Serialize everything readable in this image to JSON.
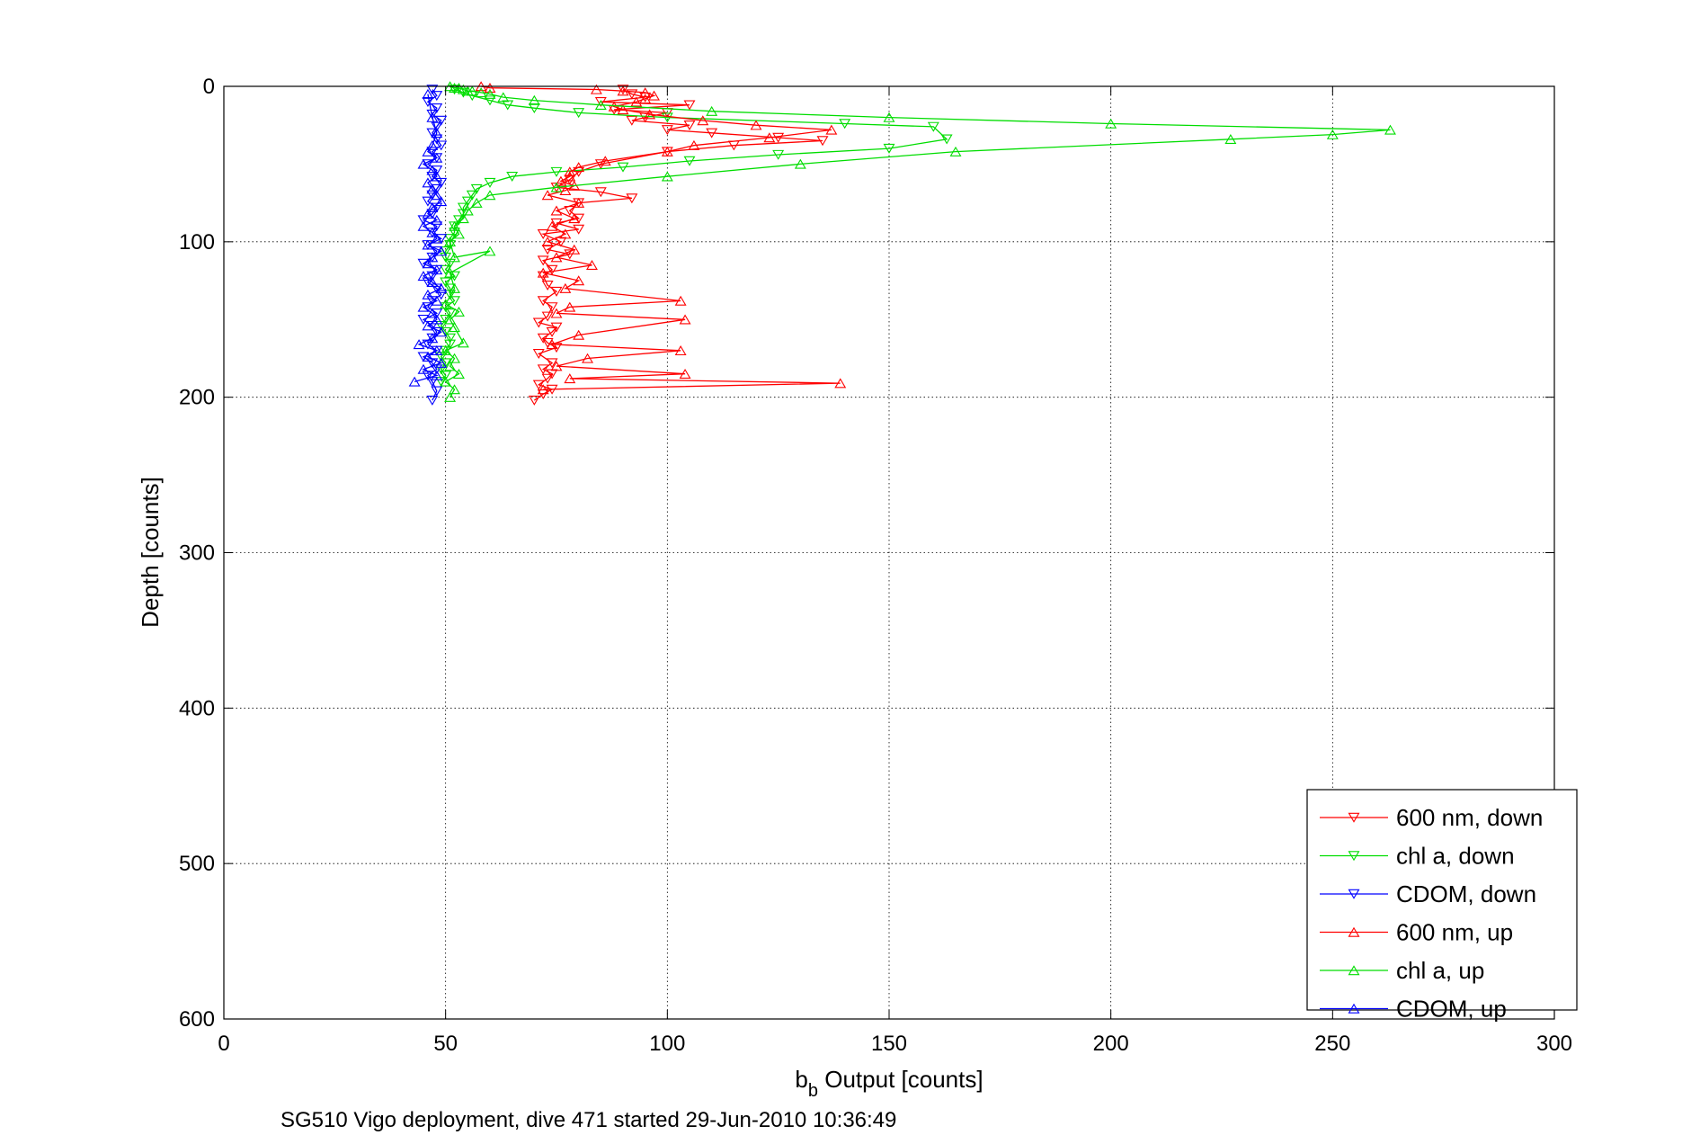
{
  "chart_data": {
    "type": "line",
    "xlabel": {
      "main": "b",
      "sub": "b",
      "rest": " Output [counts]"
    },
    "ylabel": "Depth [counts]",
    "caption": "SG510 Vigo deployment, dive 471 started 29-Jun-2010 10:36:49",
    "xlim": [
      0,
      300
    ],
    "ylim": [
      0,
      600
    ],
    "y_reversed": true,
    "x_ticks": [
      "0",
      "50",
      "100",
      "150",
      "200",
      "250",
      "300"
    ],
    "y_ticks": [
      "0",
      "100",
      "200",
      "300",
      "400",
      "500",
      "600"
    ],
    "grid": true,
    "legend_position": "bottom-right",
    "series": [
      {
        "name": "600 nm, down",
        "color": "#ff0000",
        "marker": "triangle-down",
        "x": [
          90,
          92,
          95,
          85,
          105,
          88,
          100,
          95,
          92,
          105,
          100,
          110,
          125,
          135,
          115,
          100,
          85,
          80,
          78,
          75,
          85,
          92,
          80,
          78,
          80,
          75,
          80,
          72,
          76,
          73,
          78,
          72,
          74,
          72,
          73,
          75,
          72,
          74,
          73,
          71,
          75,
          74,
          72,
          73,
          75,
          71,
          74,
          72,
          74,
          73,
          71,
          74,
          72,
          70
        ],
        "y": [
          2,
          5,
          7,
          10,
          12,
          15,
          17,
          20,
          22,
          25,
          28,
          30,
          33,
          35,
          38,
          42,
          50,
          55,
          60,
          65,
          68,
          72,
          75,
          80,
          85,
          88,
          92,
          95,
          100,
          105,
          108,
          112,
          118,
          122,
          128,
          132,
          138,
          142,
          148,
          152,
          155,
          158,
          162,
          165,
          168,
          172,
          178,
          182,
          185,
          188,
          192,
          195,
          198,
          202
        ]
      },
      {
        "name": "chl a, down",
        "color": "#00dd00",
        "marker": "triangle-down",
        "x": [
          52,
          54,
          56,
          60,
          64,
          70,
          80,
          100,
          140,
          160,
          163,
          150,
          125,
          105,
          90,
          75,
          65,
          60,
          57,
          56,
          55,
          54,
          54,
          53,
          52,
          52,
          51,
          51,
          50,
          50,
          51,
          50,
          52,
          50,
          51,
          51,
          52,
          50,
          51,
          50,
          49,
          50,
          51,
          51,
          50,
          49,
          50,
          49,
          50,
          49
        ],
        "y": [
          2,
          4,
          6,
          9,
          12,
          14,
          17,
          20,
          24,
          26,
          34,
          40,
          44,
          48,
          52,
          55,
          58,
          62,
          66,
          70,
          74,
          78,
          82,
          86,
          90,
          94,
          98,
          102,
          106,
          110,
          114,
          118,
          122,
          126,
          130,
          134,
          138,
          142,
          146,
          150,
          154,
          158,
          162,
          166,
          170,
          174,
          178,
          182,
          186,
          190
        ]
      },
      {
        "name": "CDOM, down",
        "color": "#0000ff",
        "marker": "triangle-down",
        "x": [
          47,
          48,
          46,
          48,
          47,
          49,
          48,
          47,
          48,
          49,
          47,
          48,
          46,
          48,
          47,
          49,
          48,
          47,
          46,
          48,
          47,
          45,
          48,
          47,
          49,
          46,
          48,
          47,
          45,
          48,
          47,
          46,
          48,
          49,
          47,
          46,
          48,
          45,
          47,
          48,
          47,
          46,
          48,
          45,
          47,
          48,
          46,
          47,
          48,
          47
        ],
        "y": [
          2,
          6,
          10,
          14,
          18,
          22,
          26,
          30,
          34,
          38,
          42,
          46,
          50,
          54,
          58,
          62,
          66,
          70,
          74,
          78,
          82,
          86,
          90,
          94,
          98,
          102,
          106,
          110,
          114,
          118,
          122,
          126,
          130,
          134,
          138,
          142,
          146,
          150,
          154,
          158,
          162,
          166,
          170,
          174,
          178,
          182,
          186,
          190,
          196,
          202
        ]
      },
      {
        "name": "600 nm, up",
        "color": "#ff0000",
        "marker": "triangle-up",
        "x": [
          72,
          139,
          78,
          104,
          75,
          82,
          103,
          74,
          80,
          104,
          75,
          78,
          103,
          77,
          80,
          72,
          83,
          75,
          79,
          73,
          77,
          74,
          79,
          75,
          80,
          73,
          77,
          79,
          76,
          78,
          78,
          80,
          86,
          100,
          106,
          123,
          137,
          120,
          108,
          96,
          90,
          88,
          93,
          95,
          97,
          95,
          90,
          84,
          60,
          58
        ],
        "y": [
          195,
          191,
          188,
          185,
          180,
          175,
          170,
          166,
          160,
          150,
          146,
          142,
          138,
          130,
          125,
          120,
          115,
          110,
          105,
          100,
          95,
          90,
          85,
          80,
          75,
          70,
          67,
          64,
          61,
          58,
          55,
          52,
          48,
          42,
          38,
          33,
          28,
          25,
          22,
          18,
          15,
          13,
          10,
          8,
          6,
          4,
          3,
          2,
          1,
          0
        ]
      },
      {
        "name": "chl a, up",
        "color": "#00dd00",
        "marker": "triangle-up",
        "x": [
          51,
          52,
          50,
          53,
          51,
          52,
          50,
          54,
          52,
          51,
          53,
          50,
          52,
          51,
          60,
          52,
          51,
          53,
          52,
          54,
          55,
          57,
          60,
          75,
          100,
          130,
          165,
          227,
          250,
          263,
          200,
          150,
          110,
          85,
          70,
          63,
          60,
          58,
          56,
          55,
          54,
          53,
          52,
          51
        ],
        "y": [
          200,
          195,
          190,
          185,
          180,
          175,
          170,
          165,
          155,
          150,
          145,
          140,
          130,
          120,
          106,
          110,
          100,
          95,
          90,
          85,
          80,
          75,
          70,
          65,
          58,
          50,
          42,
          34,
          31,
          28,
          24,
          20,
          16,
          12,
          9,
          7,
          5,
          4,
          3,
          3,
          2,
          1,
          1,
          0
        ]
      },
      {
        "name": "CDOM, up",
        "color": "#0000ff",
        "marker": "triangle-up",
        "x": [
          43,
          48,
          45,
          49,
          46,
          48,
          44,
          47,
          49,
          46,
          48,
          47,
          45,
          48,
          46,
          49,
          47,
          45,
          48,
          46,
          47,
          49,
          46,
          48,
          47,
          45,
          48,
          46,
          47,
          49,
          48,
          47,
          46,
          48,
          47,
          45,
          48,
          46,
          47,
          48,
          47,
          46
        ],
        "y": [
          190,
          186,
          182,
          178,
          174,
          170,
          166,
          162,
          158,
          154,
          150,
          146,
          142,
          138,
          134,
          130,
          126,
          122,
          118,
          114,
          110,
          106,
          102,
          98,
          94,
          90,
          86,
          82,
          78,
          74,
          70,
          66,
          62,
          58,
          54,
          50,
          46,
          42,
          38,
          30,
          20,
          5
        ]
      }
    ]
  }
}
